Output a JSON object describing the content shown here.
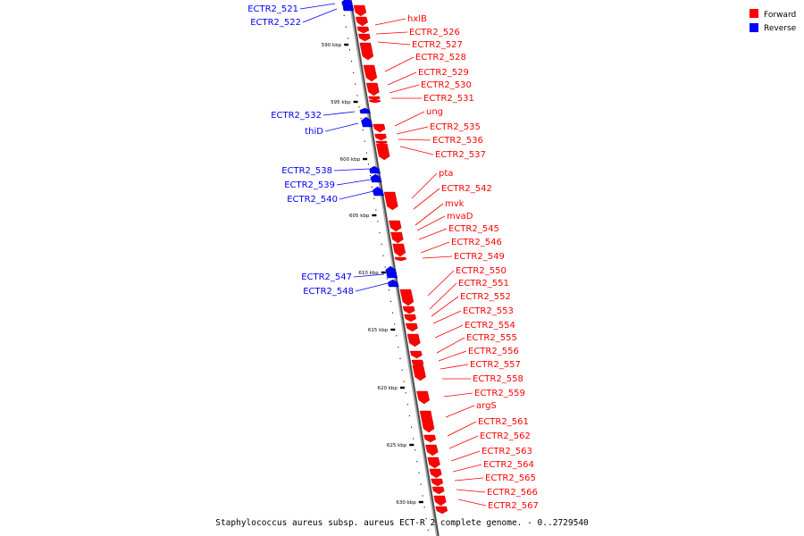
{
  "title": "Staphylococcus aureus subsp. aureus ECT-R 2 complete genome. - 0..2729540",
  "colors": {
    "forward": "#ff0000",
    "reverse": "#0000ff",
    "backbone": "#808080"
  },
  "legend": [
    {
      "key": "forward",
      "label": "Forward"
    },
    {
      "key": "reverse",
      "label": "Reverse"
    }
  ],
  "ticks": [
    "590 kbp",
    "595 kbp",
    "600 kbp",
    "605 kbp",
    "610 kbp",
    "615 kbp",
    "620 kbp",
    "625 kbp",
    "630 kbp"
  ],
  "forward_genes": [
    "hxlB",
    "ECTR2_526",
    "ECTR2_527",
    "ECTR2_528",
    "ECTR2_529",
    "ECTR2_530",
    "ECTR2_531",
    "ung",
    "ECTR2_535",
    "ECTR2_536",
    "ECTR2_537",
    "pta",
    "ECTR2_542",
    "mvk",
    "mvaD",
    "ECTR2_545",
    "ECTR2_546",
    "ECTR2_549",
    "ECTR2_550",
    "ECTR2_551",
    "ECTR2_552",
    "ECTR2_553",
    "ECTR2_554",
    "ECTR2_555",
    "ECTR2_556",
    "ECTR2_557",
    "ECTR2_558",
    "ECTR2_559",
    "argS",
    "ECTR2_561",
    "ECTR2_562",
    "ECTR2_563",
    "ECTR2_564",
    "ECTR2_565",
    "ECTR2_566",
    "ECTR2_567"
  ],
  "reverse_genes": [
    "ECTR2_521",
    "ECTR2_522",
    "ECTR2_532",
    "thiD",
    "ECTR2_538",
    "ECTR2_539",
    "ECTR2_540",
    "ECTR2_547",
    "ECTR2_548"
  ]
}
